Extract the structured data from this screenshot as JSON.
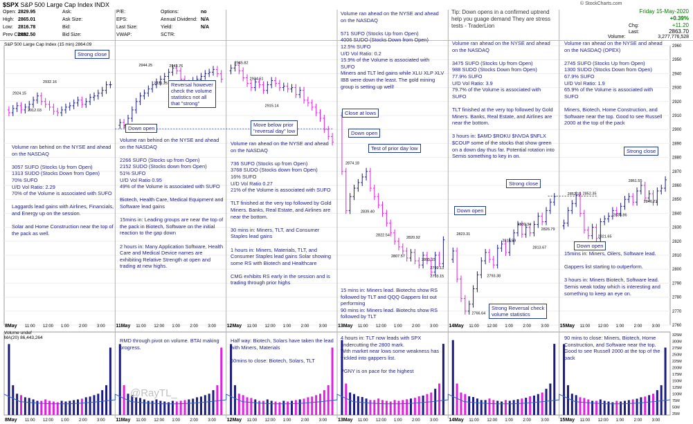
{
  "header": {
    "symbol": "$SPX",
    "name": "S&P 500 Large Cap Index  INDX",
    "watermark": "© StockCharts.com",
    "fields": [
      {
        "label": "Open:",
        "value": "2829.95"
      },
      {
        "label": "High:",
        "value": "2865.01"
      },
      {
        "label": "Low:",
        "value": "2816.78"
      },
      {
        "label": "Prev Close:",
        "value": "2852.50"
      }
    ],
    "fields2": [
      {
        "label": "Ask:",
        "value": ""
      },
      {
        "label": "Ask Size:",
        "value": ""
      },
      {
        "label": "Bid:",
        "value": ""
      },
      {
        "label": "Bid Size:",
        "value": ""
      }
    ],
    "fields3": [
      {
        "label": "P/E:",
        "value": ""
      },
      {
        "label": "EPS:",
        "value": ""
      },
      {
        "label": "Last Size:",
        "value": ""
      },
      {
        "label": "VWAP:",
        "value": ""
      }
    ],
    "fields4": [
      {
        "label": "Options:",
        "value": "no"
      },
      {
        "label": "Annual Dividend:",
        "value": "N/A"
      },
      {
        "label": "Yield:",
        "value": "N/A"
      },
      {
        "label": "SCTR:",
        "value": ""
      }
    ],
    "date": "Friday  15-May-2020",
    "change_pct": "+0.39%",
    "change": "+11.20",
    "chg_label": "Chg:",
    "last_label": "Last:",
    "last": "2863.70",
    "volume_label": "Volume:",
    "volume": "3,277,776,528"
  },
  "tip": "Tip: Down opens in a confirmed uptrend help you guage demand They are stress tests - TraderLion",
  "chart_title": "S&P 500 Large Cap Index (15 min) 2864.09",
  "volume_title": "Volume undef",
  "ma_label": "MA(20) 86,443,264",
  "watermark_user": "@RayTL_",
  "colors": {
    "up": "#1a1a80",
    "down": "#e020e0",
    "accent": "#1f3a8a",
    "note": "#1a1a8a",
    "ma": "#3060c0"
  },
  "notes": [
    {
      "id": "n1",
      "text": "Volume ran behind on the NYSE and ahead on the NASDAQ\n\n3057 SUFO (Stocks Up from Open)\n1313 SUDO (Stocks Down from Open)\n70% SUFO\nU/D Vol Ratio: 2.29\n70% of the Volume is associated with SUFO\n\nLaggards lead gains with Airlines, Financials, and Energy up on the session.\n\nSolar and Home Construction near the top of the pack as well."
    },
    {
      "id": "n2",
      "text": "Volume ran behind on the NYSE and ahead on the NASDAQ\n\n2266 SUFO (Stocks up from Open)\n2152 SUDO (Stocks down from Open)\n51% SUFO\nU/D Vol Ratio 0.95\n49% of the Volume is associated with SUFO\n\nBiotech, Health Care, Medical Equipment and Software lead gains\n\n15mins in: Leading groups are near the top of the pack in Biotech, Software on the initial reaction to the gap down\n\n2 hours in: Many Application Software, Health Care and Medical Device names are exhibiting Relative Strength at open and trading at new highs."
    },
    {
      "id": "n3",
      "text": "Volume ran ahead on the NYSE and ahead on the NASDAQ\n\n736 SUFO (Stocks up from Open)\n3768 SUDO (Stocks down from Open)\n16% SUFO\nU/D Vol Ratio 0.27\n21% of the Volume is associated with SUFO\n\nTLT finished at the very top followed by Gold Miners. Banks, Real Estate, and Airlines are near the bottom.\n\n30 mins in: Miners, TLT, and Consumer Staples lead gains\n\n1 hours in: Miners, Materials, TLT, and Consumer Staples lead gains Solar showing some RS with Biotech and Healthcare\n\nCMG exhibits RS early in the session and is trading through prior highs"
    },
    {
      "id": "n4",
      "text": "Volume ran ahead on the NYSE and ahead on the NASDAQ\n\n571 SUFO (Stocks Up from Open)\n4006 SUDO (Stocks Down from Open)\n12.5% SUFO\nU/D Vol Ratio: 0.2\n15.9% of the Volume is associated with SUFO\nMiners and TLT led gains while XLU XLP XLV IBB were down the least. The gold mining group is setting up well!"
    },
    {
      "id": "n4b",
      "text": "15 mins in: Miners lead. Biotechs show RS followed by TLT and QQQ Gappers list out performing\n90 mins in: Miners lead. Biotechs show RS followed by TLT"
    },
    {
      "id": "n5",
      "text": "Volume ran ahead on the NYSE and ahead on the NASDAQ\n\n3475 SUFO (Stocks Up from Open)\n988 SUDO (Stocks Down from Open)\n77.9% SUFO\nU/D Vol Ratio: 3.9\n79.7% of the Volume is associated with SUFO\n\nTLT finished at the very top followed by Gold Miners. Banks, Real Estate, and Airlines are near the bottom.\n\n3 hours in: $AMD $ROKU $NVDA $NFLX $COUP some of the stocks that show green on a down day thus far. Potential rotation into Semis something to key in on."
    },
    {
      "id": "n6",
      "text": "Volume ran ahead on the NYSE and ahead on the NASDAQ (OPEX)\n\n2745 SUFO (Stocks Up from Open)\n1300 SUDO (Stocks Down from Open)\n67.9% SUFO\nU/D Vol Ratio: 1.9\n65.9% of the Volume is associated with SUFO\n\nMiners, Biotech, Home Construction, and Software near the top. Good to see Russell 2000 at the top of the pack"
    },
    {
      "id": "n6b",
      "text": "15mins in: Miners, Oilers, Software lead.\n\nGappers list starting to outperform.\n\n3 hours in: Miners Biotech, Software lead. Semis weak today which is interesting and something to keep an eye on."
    },
    {
      "id": "v2",
      "text": "RMD through pivot on volume. BTAI making progress."
    },
    {
      "id": "v3",
      "text": "Half way: Biotech, Solars have taken the lead with Miners, Materials\n\n60mins to close: Biotech, Solars, TLT"
    },
    {
      "id": "v4",
      "text": "4 hours in: TLT now leads with SPX undercutting the 2800 mark.\nWith market near lows some weakness has trickled into gappers list.\n\nPGNY is on pace for the highest"
    },
    {
      "id": "v6",
      "text": "90 mins to close: Miners, Biotech, Home Construction, and Software near the top. Good to see Russell 2000 at the top of the pack"
    }
  ],
  "callouts": [
    {
      "id": "c1",
      "text": "Strong close"
    },
    {
      "id": "c2",
      "text": "Reversal however\ncheck the volume\nstatistics not all\nthat \"strong\""
    },
    {
      "id": "c3",
      "text": "Down open"
    },
    {
      "id": "c4",
      "text": "Move below prior\n\"reversal day\" low"
    },
    {
      "id": "c5",
      "text": "Close at lows"
    },
    {
      "id": "c6",
      "text": "Down open"
    },
    {
      "id": "c7",
      "text": "Test of prior day low"
    },
    {
      "id": "c8",
      "text": "Down open"
    },
    {
      "id": "c9",
      "text": "Strong Reversal check\nvolume statistics"
    },
    {
      "id": "c10",
      "text": "Strong close"
    },
    {
      "id": "c11",
      "text": "Down open"
    },
    {
      "id": "c12",
      "text": "Strong close"
    }
  ],
  "chart_data": {
    "type": "candlestick",
    "title": "S&P 500 Large Cap Index (15 min) 2864.09",
    "interval": "15 min",
    "days": [
      "8May",
      "11May",
      "12May",
      "13May",
      "14May",
      "15May"
    ],
    "x_time_labels": [
      "11:00",
      "12:00",
      "1:00",
      "2:00",
      "3:00"
    ],
    "ylim": [
      2760,
      2960
    ],
    "yticks": [
      2760,
      2770,
      2780,
      2790,
      2800,
      2810,
      2820,
      2830,
      2840,
      2850,
      2860,
      2870,
      2880,
      2890,
      2900,
      2910,
      2920,
      2930,
      2940,
      2950,
      2960
    ],
    "annotated_prices": [
      {
        "day": 0,
        "label": "2924.15",
        "value": 2924.15
      },
      {
        "day": 0,
        "label": "2912.03",
        "value": 2912.03
      },
      {
        "day": 0,
        "label": "2932.16",
        "value": 2932.16
      },
      {
        "day": 1,
        "label": "2900.46",
        "value": 2900.46
      },
      {
        "day": 1,
        "label": "2944.25",
        "value": 2944.25
      },
      {
        "day": 1,
        "label": "2931.25",
        "value": 2931.25
      },
      {
        "day": 1,
        "label": "2943.76",
        "value": 2943.76
      },
      {
        "day": 2,
        "label": "2945.82",
        "value": 2945.82
      },
      {
        "day": 2,
        "label": "2934.51",
        "value": 2934.51
      },
      {
        "day": 2,
        "label": "2915.14",
        "value": 2915.14
      },
      {
        "day": 3,
        "label": "2874.18",
        "value": 2874.18
      },
      {
        "day": 3,
        "label": "2839.40",
        "value": 2839.4
      },
      {
        "day": 3,
        "label": "2822.54",
        "value": 2822.54
      },
      {
        "day": 3,
        "label": "2807.57",
        "value": 2807.57
      },
      {
        "day": 3,
        "label": "2820.92",
        "value": 2820.92
      },
      {
        "day": 3,
        "label": "2805.15",
        "value": 2805.15
      },
      {
        "day": 3,
        "label": "2799.13",
        "value": 2799.13
      },
      {
        "day": 3,
        "label": "2793.15",
        "value": 2793.15
      },
      {
        "day": 4,
        "label": "2823.31",
        "value": 2823.31
      },
      {
        "day": 4,
        "label": "2766.64",
        "value": 2766.64
      },
      {
        "day": 4,
        "label": "2793.38",
        "value": 2793.38
      },
      {
        "day": 4,
        "label": "2818.59",
        "value": 2818.59
      },
      {
        "day": 4,
        "label": "2830.34",
        "value": 2830.34
      },
      {
        "day": 4,
        "label": "2813.67",
        "value": 2813.67
      },
      {
        "day": 4,
        "label": "2826.79",
        "value": 2826.79
      },
      {
        "day": 5,
        "label": "2852.15",
        "value": 2852.15
      },
      {
        "day": 5,
        "label": "2852.35",
        "value": 2852.35
      },
      {
        "day": 5,
        "label": "2821.65",
        "value": 2821.65
      },
      {
        "day": 5,
        "label": "2836.86",
        "value": 2836.86
      },
      {
        "day": 5,
        "label": "2861.55",
        "value": 2861.55
      },
      {
        "day": 5,
        "label": "2846.71",
        "value": 2846.71
      }
    ],
    "series": [
      {
        "name": "SPX",
        "day": 0,
        "closes": [
          2912,
          2915,
          2917,
          2914,
          2916,
          2918,
          2921,
          2924,
          2920,
          2918,
          2916,
          2913,
          2912,
          2914,
          2916,
          2917,
          2919,
          2921,
          2918,
          2920,
          2923,
          2924,
          2926,
          2928,
          2932,
          2932
        ]
      },
      {
        "name": "SPX",
        "day": 1,
        "closes": [
          2905,
          2903,
          2908,
          2914,
          2920,
          2924,
          2926,
          2929,
          2932,
          2934,
          2936,
          2938,
          2941,
          2944,
          2942,
          2936,
          2931,
          2933,
          2935,
          2936,
          2938,
          2940,
          2941,
          2943,
          2940,
          2936
        ]
      },
      {
        "name": "SPX",
        "day": 2,
        "closes": [
          2944,
          2946,
          2942,
          2937,
          2933,
          2930,
          2934,
          2932,
          2928,
          2932,
          2935,
          2933,
          2930,
          2931,
          2929,
          2930,
          2925,
          2928,
          2921,
          2919,
          2916,
          2912,
          2908,
          2900,
          2895,
          2891
        ]
      },
      {
        "name": "SPX",
        "day": 3,
        "closes": [
          2870,
          2842,
          2852,
          2858,
          2862,
          2866,
          2870,
          2858,
          2852,
          2846,
          2840,
          2833,
          2826,
          2820,
          2816,
          2813,
          2808,
          2812,
          2806,
          2803,
          2810,
          2806,
          2798,
          2810,
          2804,
          2821
        ]
      },
      {
        "name": "SPX",
        "day": 4,
        "closes": [
          2813,
          2793,
          2779,
          2770,
          2775,
          2786,
          2796,
          2806,
          2812,
          2807,
          2803,
          2815,
          2818,
          2812,
          2820,
          2826,
          2832,
          2825,
          2830,
          2826,
          2832,
          2838,
          2834,
          2842,
          2848,
          2852
        ]
      },
      {
        "name": "SPX",
        "day": 5,
        "closes": [
          2833,
          2842,
          2847,
          2853,
          2840,
          2828,
          2824,
          2830,
          2822,
          2834,
          2836,
          2838,
          2842,
          2840,
          2845,
          2850,
          2852,
          2848,
          2856,
          2860,
          2851,
          2854,
          2848,
          2856,
          2858,
          2864
        ]
      }
    ],
    "volume": {
      "name": "Volume",
      "ma_label": "MA(20) 86,443,264",
      "relative": [
        1.0,
        0.42,
        0.3,
        0.28,
        0.25,
        0.24,
        0.22,
        0.2,
        0.2,
        0.22,
        0.2,
        0.19,
        0.18,
        0.2,
        0.19,
        0.2,
        0.21,
        0.22,
        0.23,
        0.25,
        0.26,
        0.28,
        0.3,
        0.35,
        0.42,
        0.95
      ]
    }
  }
}
